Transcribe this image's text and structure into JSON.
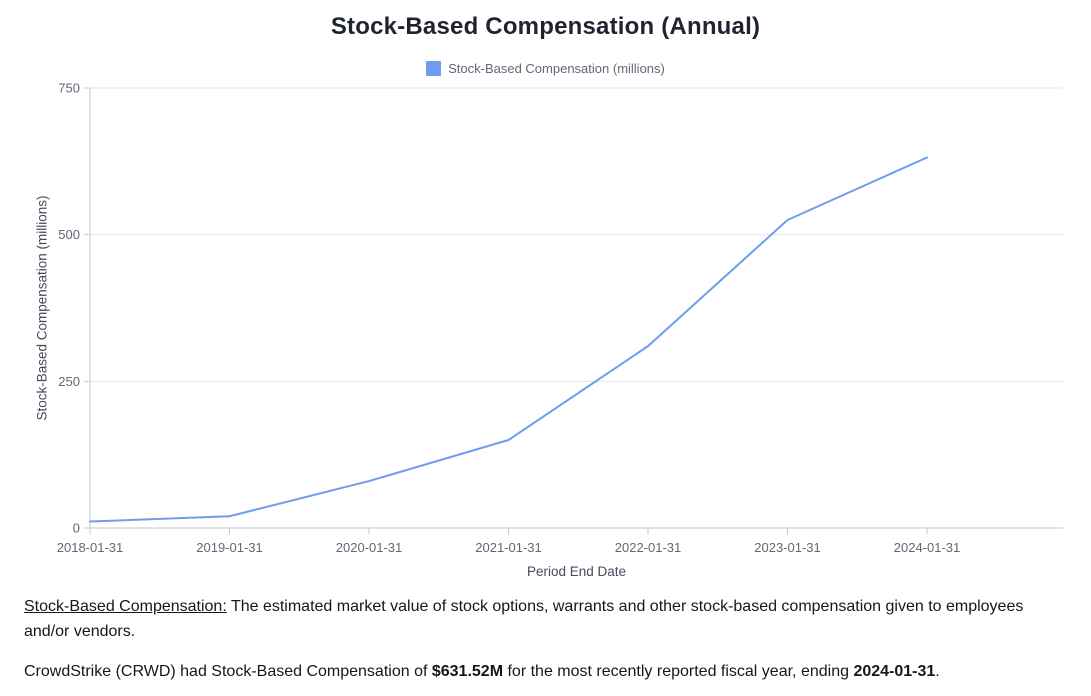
{
  "header": {
    "title": "Stock-Based Compensation (Annual)"
  },
  "legend": {
    "label": "Stock-Based Compensation (millions)",
    "swatch_color": "#6f9bf0"
  },
  "chart_data": {
    "type": "line",
    "title": "Stock-Based Compensation (Annual)",
    "x": [
      "2018-01-31",
      "2019-01-31",
      "2020-01-31",
      "2021-01-31",
      "2022-01-31",
      "2023-01-31",
      "2024-01-31"
    ],
    "series": [
      {
        "name": "Stock-Based Compensation (millions)",
        "values": [
          11,
          20,
          80,
          150,
          310,
          525,
          631.52
        ]
      }
    ],
    "xlabel": "Period End Date",
    "ylabel": "Stock-Based Compensation (millions)",
    "ylim": [
      0,
      750
    ],
    "yticks": [
      0,
      250,
      500,
      750
    ],
    "grid": "horizontal-only",
    "legend_position": "top",
    "colors": {
      "line": "#6f9bf0",
      "gridline": "#e6e6e8",
      "axis": "#c3c7cd",
      "tick_text": "#5f6876"
    }
  },
  "notes": {
    "definition_term": "Stock-Based Compensation:",
    "definition_text": " The estimated market value of stock options, warrants and other stock-based compensation given to employees and/or vendors.",
    "summary_prefix": "CrowdStrike (CRWD) had Stock-Based Compensation of ",
    "summary_value": "$631.52M",
    "summary_middle": " for the most recently reported fiscal year, ending ",
    "summary_date": "2024-01-31",
    "summary_suffix": "."
  }
}
